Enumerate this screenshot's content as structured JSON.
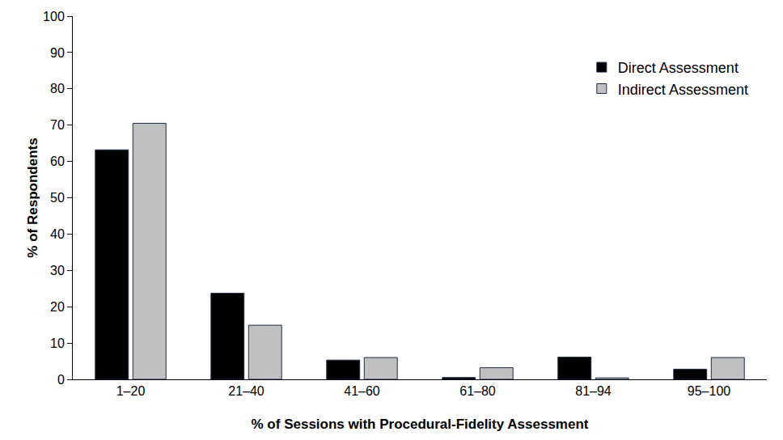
{
  "chart_data": {
    "type": "bar",
    "categories": [
      "1–20",
      "21–40",
      "41–60",
      "61–80",
      "81–94",
      "95–100"
    ],
    "series": [
      {
        "name": "Direct Assessment",
        "color": "#000000",
        "values": [
          63.2,
          23.7,
          5.3,
          0.5,
          6.1,
          2.8
        ]
      },
      {
        "name": "Indirect Assessment",
        "color": "#c0c0c0",
        "values": [
          70.5,
          14.9,
          6.0,
          3.2,
          0.4,
          6.0
        ]
      }
    ],
    "xlabel": "% of Sessions with Procedural-Fidelity Assessment",
    "ylabel": "% of Respondents",
    "ylim": [
      0,
      100
    ],
    "yticks": [
      0,
      10,
      20,
      30,
      40,
      50,
      60,
      70,
      80,
      90,
      100
    ],
    "grid": false,
    "legend": "top right"
  }
}
